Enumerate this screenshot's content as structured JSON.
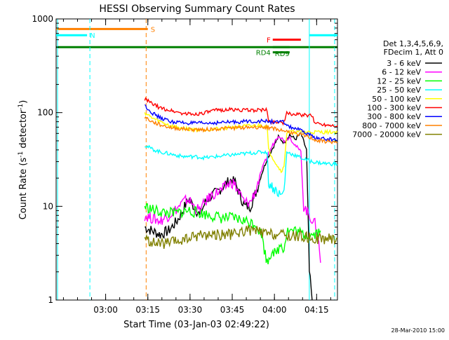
{
  "chart_data": {
    "type": "line",
    "title": "HESSI Observing Summary Count Rates",
    "xlabel": "Start Time (03-Jan-03 02:49:22)",
    "ylabel_main": "Count Rate (s",
    "ylabel_sup1": "-1",
    "ylabel_mid": " detector",
    "ylabel_sup2": "-1",
    "ylabel_end": ")",
    "yscale": "log",
    "ylim": [
      1,
      1000
    ],
    "xlim_minutes": [
      -7,
      93
    ],
    "x_ticks": [
      {
        "label": "03:00",
        "t": 10.6
      },
      {
        "label": "03:15",
        "t": 25.6
      },
      {
        "label": "03:30",
        "t": 40.6
      },
      {
        "label": "03:45",
        "t": 55.6
      },
      {
        "label": "04:00",
        "t": 70.6
      },
      {
        "label": "04:15",
        "t": 85.6
      }
    ],
    "y_ticks": [
      {
        "label": "1",
        "v": 1
      },
      {
        "label": "10",
        "v": 10
      },
      {
        "label": "100",
        "v": 100
      },
      {
        "label": "1000",
        "v": 1000
      }
    ],
    "legend_header": [
      "Det 1,3,4,5,6,9,",
      "FDecim 1, Att 0"
    ],
    "series": [
      {
        "name": "3 - 6 keV",
        "color": "#000000",
        "points": [
          [
            24.5,
            6
          ],
          [
            27,
            5.5
          ],
          [
            30,
            5
          ],
          [
            33,
            5.5
          ],
          [
            36,
            7
          ],
          [
            38,
            9
          ],
          [
            40,
            12
          ],
          [
            42,
            10
          ],
          [
            44,
            8
          ],
          [
            46,
            11
          ],
          [
            48,
            13
          ],
          [
            50,
            14
          ],
          [
            52,
            16
          ],
          [
            54,
            18
          ],
          [
            56,
            20
          ],
          [
            58,
            14
          ],
          [
            60,
            10
          ],
          [
            62,
            10
          ],
          [
            64,
            14
          ],
          [
            66,
            22
          ],
          [
            68,
            32
          ],
          [
            70,
            42
          ],
          [
            72,
            55
          ],
          [
            74,
            48
          ],
          [
            76,
            58
          ],
          [
            78,
            52
          ],
          [
            80,
            60
          ],
          [
            82,
            40
          ],
          [
            83,
            2
          ],
          [
            84,
            1
          ]
        ]
      },
      {
        "name": "6 - 12 keV",
        "color": "#ff00ff",
        "points": [
          [
            24.5,
            8
          ],
          [
            27,
            7.5
          ],
          [
            30,
            7
          ],
          [
            33,
            8
          ],
          [
            36,
            9.5
          ],
          [
            38,
            11
          ],
          [
            40,
            12
          ],
          [
            42,
            10
          ],
          [
            44,
            9
          ],
          [
            46,
            11
          ],
          [
            48,
            13
          ],
          [
            50,
            14
          ],
          [
            52,
            15
          ],
          [
            54,
            17
          ],
          [
            56,
            18
          ],
          [
            58,
            14
          ],
          [
            60,
            11
          ],
          [
            62,
            11
          ],
          [
            64,
            15
          ],
          [
            66,
            24
          ],
          [
            68,
            34
          ],
          [
            70,
            45
          ],
          [
            72,
            58
          ],
          [
            74,
            50
          ],
          [
            76,
            55
          ],
          [
            78,
            45
          ],
          [
            80,
            38
          ],
          [
            81,
            10
          ],
          [
            83,
            8
          ],
          [
            85,
            6.5
          ],
          [
            86,
            5
          ],
          [
            87,
            2.5
          ]
        ]
      },
      {
        "name": "12 - 25 keV",
        "color": "#00ff00",
        "points": [
          [
            24.5,
            10
          ],
          [
            28,
            9
          ],
          [
            32,
            8.5
          ],
          [
            36,
            8.5
          ],
          [
            40,
            9
          ],
          [
            44,
            8.5
          ],
          [
            48,
            8
          ],
          [
            52,
            7.5
          ],
          [
            56,
            7.5
          ],
          [
            60,
            7
          ],
          [
            64,
            6.5
          ],
          [
            66,
            5
          ],
          [
            67,
            3.5
          ],
          [
            68,
            2.5
          ],
          [
            69,
            3
          ],
          [
            70,
            3.5
          ],
          [
            71,
            3
          ],
          [
            72,
            3.5
          ],
          [
            73,
            4
          ],
          [
            74,
            3.5
          ],
          [
            75,
            5.5
          ],
          [
            78,
            5.5
          ],
          [
            81,
            5
          ],
          [
            84,
            5
          ],
          [
            87,
            5.5
          ]
        ]
      },
      {
        "name": "25 - 50 keV",
        "color": "#00ffff",
        "points": [
          [
            24.5,
            45
          ],
          [
            27,
            41
          ],
          [
            30,
            38
          ],
          [
            34,
            36
          ],
          [
            38,
            34
          ],
          [
            42,
            34
          ],
          [
            46,
            33
          ],
          [
            50,
            34
          ],
          [
            54,
            35
          ],
          [
            58,
            36
          ],
          [
            62,
            37
          ],
          [
            66,
            38
          ],
          [
            68,
            38
          ],
          [
            68.5,
            18
          ],
          [
            70,
            16
          ],
          [
            72,
            14
          ],
          [
            73,
            13
          ],
          [
            74,
            14.5
          ],
          [
            75,
            38
          ],
          [
            78,
            35
          ],
          [
            81,
            32
          ],
          [
            84,
            30
          ],
          [
            87,
            29
          ],
          [
            93,
            28
          ]
        ]
      },
      {
        "name": "50 - 100 keV",
        "color": "#ffff00",
        "points": [
          [
            24.5,
            100
          ],
          [
            27,
            88
          ],
          [
            30,
            80
          ],
          [
            34,
            72
          ],
          [
            38,
            68
          ],
          [
            42,
            66
          ],
          [
            46,
            66
          ],
          [
            50,
            67
          ],
          [
            54,
            69
          ],
          [
            58,
            71
          ],
          [
            62,
            72
          ],
          [
            66,
            73
          ],
          [
            68,
            72
          ],
          [
            68.5,
            40
          ],
          [
            70,
            33
          ],
          [
            72,
            26
          ],
          [
            73,
            24
          ],
          [
            74,
            26
          ],
          [
            75,
            62
          ],
          [
            78,
            62
          ],
          [
            82,
            62
          ],
          [
            86,
            62
          ],
          [
            93,
            62
          ]
        ]
      },
      {
        "name": "100 - 300 keV",
        "color": "#ff0000",
        "points": [
          [
            24.5,
            140
          ],
          [
            27,
            125
          ],
          [
            30,
            112
          ],
          [
            34,
            105
          ],
          [
            38,
            98
          ],
          [
            42,
            96
          ],
          [
            46,
            100
          ],
          [
            50,
            106
          ],
          [
            54,
            108
          ],
          [
            58,
            107
          ],
          [
            62,
            106
          ],
          [
            66,
            107
          ],
          [
            68,
            106
          ],
          [
            68.5,
            80
          ],
          [
            72,
            80
          ],
          [
            74,
            78
          ],
          [
            75,
            98
          ],
          [
            78,
            96
          ],
          [
            81,
            94
          ],
          [
            84,
            92
          ],
          [
            85,
            78
          ],
          [
            88,
            75
          ],
          [
            93,
            73
          ]
        ]
      },
      {
        "name": "300 - 800 keV",
        "color": "#0000ff",
        "points": [
          [
            24.5,
            120
          ],
          [
            27,
            100
          ],
          [
            30,
            88
          ],
          [
            34,
            80
          ],
          [
            38,
            78
          ],
          [
            42,
            77
          ],
          [
            46,
            77
          ],
          [
            50,
            78
          ],
          [
            54,
            79
          ],
          [
            58,
            80
          ],
          [
            62,
            81
          ],
          [
            66,
            81
          ],
          [
            68,
            81
          ],
          [
            70,
            80
          ],
          [
            72,
            79
          ],
          [
            74,
            79
          ],
          [
            76,
            70
          ],
          [
            78,
            68
          ],
          [
            80,
            64
          ],
          [
            82,
            60
          ],
          [
            84,
            56
          ],
          [
            86,
            53
          ],
          [
            90,
            52
          ],
          [
            93,
            51
          ]
        ]
      },
      {
        "name": "800 - 7000 keV",
        "color": "#ff8000",
        "points": [
          [
            24.5,
            90
          ],
          [
            27,
            80
          ],
          [
            30,
            74
          ],
          [
            34,
            69
          ],
          [
            38,
            67
          ],
          [
            42,
            66
          ],
          [
            46,
            66
          ],
          [
            50,
            67
          ],
          [
            54,
            68
          ],
          [
            58,
            69
          ],
          [
            62,
            70
          ],
          [
            66,
            70
          ],
          [
            68,
            70
          ],
          [
            70,
            68
          ],
          [
            72,
            66
          ],
          [
            74,
            64
          ],
          [
            76,
            62
          ],
          [
            78,
            60
          ],
          [
            80,
            58
          ],
          [
            82,
            56
          ],
          [
            84,
            53
          ],
          [
            86,
            50
          ],
          [
            90,
            49
          ],
          [
            93,
            48
          ]
        ]
      },
      {
        "name": "7000 - 20000 keV",
        "color": "#808000",
        "points": [
          [
            24.5,
            4.5
          ],
          [
            28,
            4
          ],
          [
            32,
            4
          ],
          [
            36,
            4.2
          ],
          [
            40,
            4.5
          ],
          [
            44,
            5
          ],
          [
            48,
            5
          ],
          [
            52,
            5
          ],
          [
            56,
            5
          ],
          [
            60,
            5.5
          ],
          [
            64,
            5.5
          ],
          [
            66,
            5.2
          ],
          [
            68,
            5
          ],
          [
            72,
            5
          ],
          [
            76,
            4.8
          ],
          [
            80,
            4.8
          ],
          [
            84,
            4.5
          ],
          [
            88,
            4.5
          ],
          [
            93,
            4.5
          ]
        ]
      }
    ],
    "state_bars": [
      {
        "label": "S",
        "color": "#ff8000",
        "t0": -7,
        "t1": 25.6,
        "v": 780,
        "label_side": "right"
      },
      {
        "label": "N",
        "color": "#00ffff",
        "t0": -7,
        "t1": 4,
        "v": 670,
        "label_side": "right"
      },
      {
        "label": "",
        "color": "#00ffff",
        "t0": 83,
        "t1": 93,
        "v": 670,
        "label_side": "none"
      },
      {
        "label": "F",
        "color": "#ff0000",
        "t0": 70,
        "t1": 80,
        "v": 600,
        "label_side": "left"
      },
      {
        "label": "RD9",
        "color": "#008000",
        "t0": 70,
        "t1": 76,
        "v": 500,
        "label_side": "below"
      },
      {
        "label": "RD4",
        "color": "#008000",
        "t0": 70,
        "t1": 76,
        "v": 440,
        "label_side": "left"
      },
      {
        "label": "",
        "color": "#008000",
        "t0": -7,
        "t1": 93,
        "v": 500,
        "label_side": "none"
      }
    ],
    "vlines": [
      {
        "t": -6.5,
        "color": "#00ffff",
        "style": "solid"
      },
      {
        "t": 5,
        "color": "#00ffff",
        "style": "dashed"
      },
      {
        "t": 25,
        "color": "#ff8000",
        "style": "dashed"
      },
      {
        "t": 83,
        "color": "#00ffff",
        "style": "solid"
      },
      {
        "t": 92,
        "color": "#00ffff",
        "style": "dashed"
      }
    ]
  },
  "footer": {
    "date": "28-Mar-2010 15:00"
  }
}
